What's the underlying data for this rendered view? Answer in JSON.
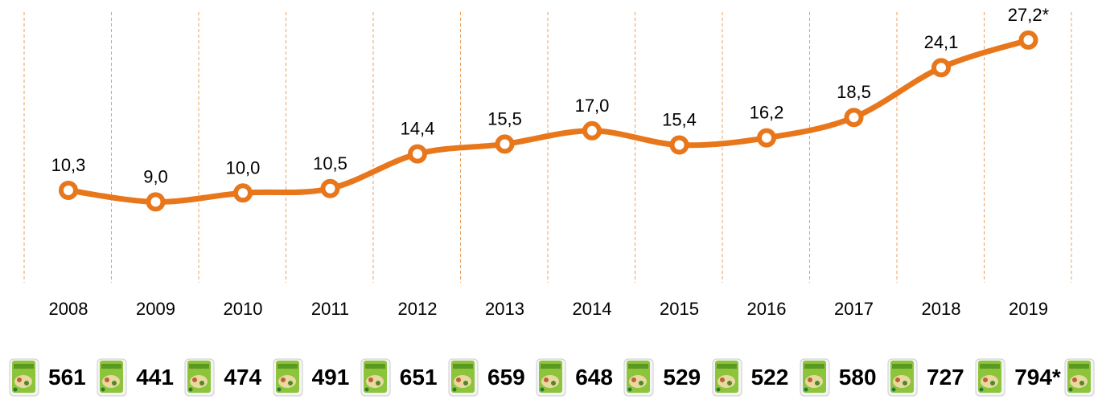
{
  "chart_data": {
    "type": "line",
    "categories": [
      "2008",
      "2009",
      "2010",
      "2011",
      "2012",
      "2013",
      "2014",
      "2015",
      "2016",
      "2017",
      "2018",
      "2019"
    ],
    "values": [
      10.3,
      9.0,
      10.0,
      10.5,
      14.4,
      15.5,
      17.0,
      15.4,
      16.2,
      18.5,
      24.1,
      27.2
    ],
    "data_labels": [
      "10,3",
      "9,0",
      "10,0",
      "10,5",
      "14,4",
      "15,5",
      "17,0",
      "15,4",
      "16,2",
      "18,5",
      "24,1",
      "27,2*"
    ],
    "ylim": [
      0,
      28
    ],
    "grid": "vertical dashed",
    "colors": {
      "line": "#E8761B",
      "grid": "#E8A060"
    },
    "secondary_row": {
      "values": [
        "561",
        "441",
        "474",
        "491",
        "651",
        "659",
        "648",
        "529",
        "522",
        "580",
        "727",
        "794*"
      ],
      "icon": "noodle-package-icon"
    }
  }
}
